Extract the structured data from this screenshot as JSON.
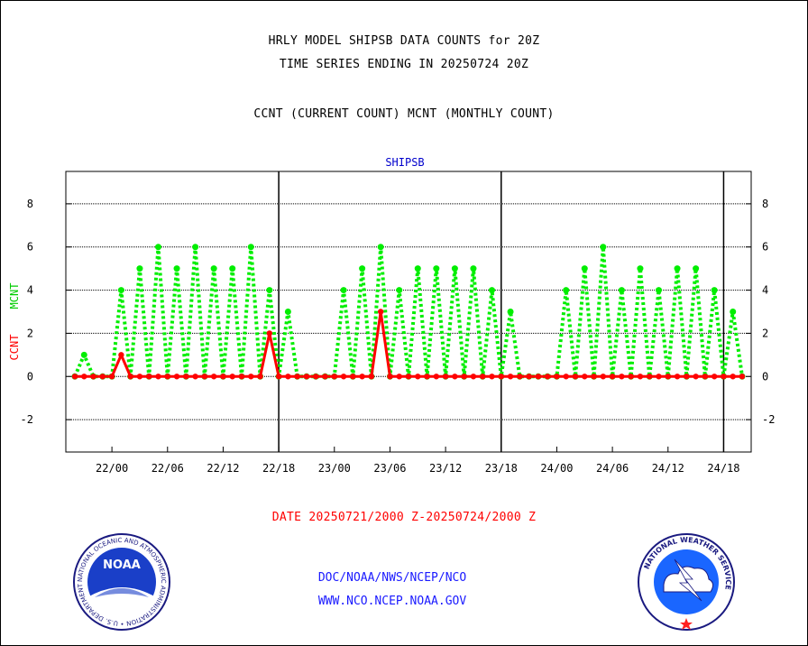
{
  "header": {
    "title_line1": "HRLY MODEL SHIPSB DATA COUNTS for 20Z",
    "title_line2": "TIME SERIES ENDING IN 20250724 20Z",
    "legend_line": "CCNT (CURRENT COUNT) MCNT (MONTHLY COUNT)"
  },
  "footer": {
    "date_range": "DATE 20250721/2000 Z-20250724/2000 Z",
    "org_path": "DOC/NOAA/NWS/NCEP/NCO",
    "website": "WWW.NCO.NCEP.NOAA.GOV"
  },
  "logos": {
    "noaa_text": "NOAA",
    "noaa_ring_text": "NATIONAL OCEANIC AND ATMOSPHERIC ADMINISTRATION • U.S. DEPARTMENT OF COMMERCE •",
    "nws_ring_text": "NATIONAL WEATHER SERVICE"
  },
  "chart_data": {
    "type": "line",
    "title": "SHIPSB",
    "ylabel_ccnt": "CCNT",
    "ylabel_mcnt": "MCNT",
    "ylim": [
      -3.5,
      9.5
    ],
    "yticks": [
      -2,
      0,
      2,
      4,
      6,
      8
    ],
    "x_tick_labels": [
      "22/00",
      "22/06",
      "22/12",
      "22/18",
      "23/00",
      "23/06",
      "23/12",
      "23/18",
      "24/00",
      "24/06",
      "24/12",
      "24/18"
    ],
    "x_tick_hours": [
      4,
      10,
      16,
      22,
      28,
      34,
      40,
      46,
      52,
      58,
      64,
      70
    ],
    "day_boundary_hours": [
      22,
      46,
      70
    ],
    "hours_start_label": "21/20",
    "colors": {
      "ccnt": "#ff0000",
      "mcnt": "#00ee00",
      "title": "#0000cc",
      "date": "#ff0000",
      "links": "#1a1aff"
    },
    "series": [
      {
        "name": "MCNT",
        "values": [
          0,
          1,
          0,
          0,
          0,
          4,
          0,
          5,
          0,
          6,
          0,
          5,
          0,
          6,
          0,
          5,
          0,
          5,
          0,
          6,
          0,
          4,
          0,
          3,
          0,
          0,
          0,
          0,
          0,
          4,
          0,
          5,
          0,
          6,
          0,
          4,
          0,
          5,
          0,
          5,
          0,
          5,
          0,
          5,
          0,
          4,
          0,
          3,
          0,
          0,
          0,
          0,
          0,
          4,
          0,
          5,
          0,
          6,
          0,
          4,
          0,
          5,
          0,
          4,
          0,
          5,
          0,
          5,
          0,
          4,
          0,
          3,
          0
        ]
      },
      {
        "name": "CCNT",
        "values": [
          0,
          0,
          0,
          0,
          0,
          1,
          0,
          0,
          0,
          0,
          0,
          0,
          0,
          0,
          0,
          0,
          0,
          0,
          0,
          0,
          0,
          2,
          0,
          0,
          0,
          0,
          0,
          0,
          0,
          0,
          0,
          0,
          0,
          3,
          0,
          0,
          0,
          0,
          0,
          0,
          0,
          0,
          0,
          0,
          0,
          0,
          0,
          0,
          0,
          0,
          0,
          0,
          0,
          0,
          0,
          0,
          0,
          0,
          0,
          0,
          0,
          0,
          0,
          0,
          0,
          0,
          0,
          0,
          0,
          0,
          0,
          0,
          0
        ]
      }
    ]
  }
}
